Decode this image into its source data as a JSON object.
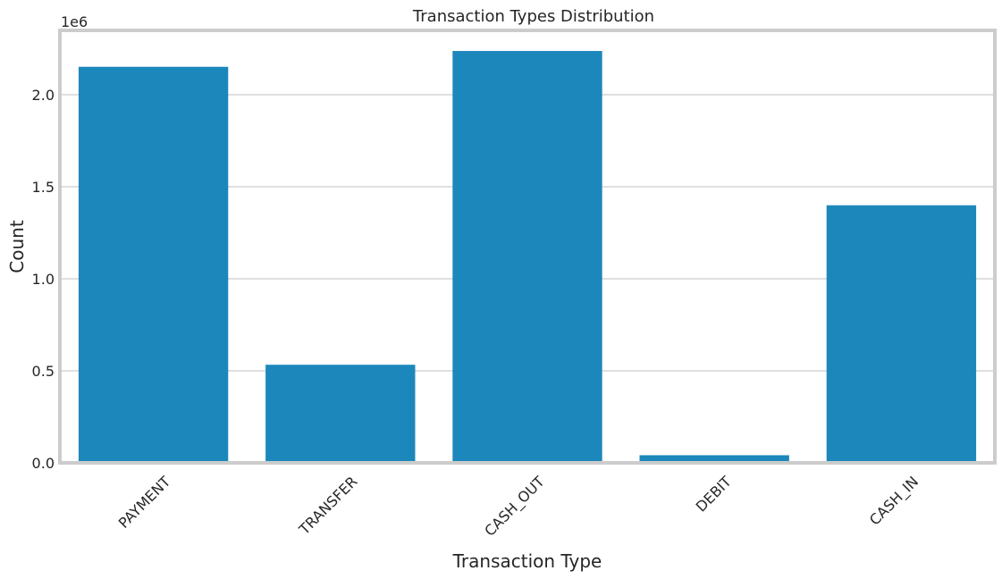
{
  "chart_data": {
    "type": "bar",
    "title": "Transaction Types Distribution",
    "xlabel": "Transaction Type",
    "ylabel": "Count",
    "offset_label": "1e6",
    "categories": [
      "PAYMENT",
      "TRANSFER",
      "CASH_OUT",
      "DEBIT",
      "CASH_IN"
    ],
    "values": [
      2151495,
      532909,
      2237500,
      41432,
      1399284
    ],
    "yticks": [
      0.0,
      0.5,
      1.0,
      1.5,
      2.0
    ],
    "ytick_labels": [
      "0.0",
      "0.5",
      "1.0",
      "1.5",
      "2.0"
    ],
    "ylim": [
      0,
      2349375
    ],
    "grid": "horizontal",
    "bar_color": "#1c87bb"
  }
}
